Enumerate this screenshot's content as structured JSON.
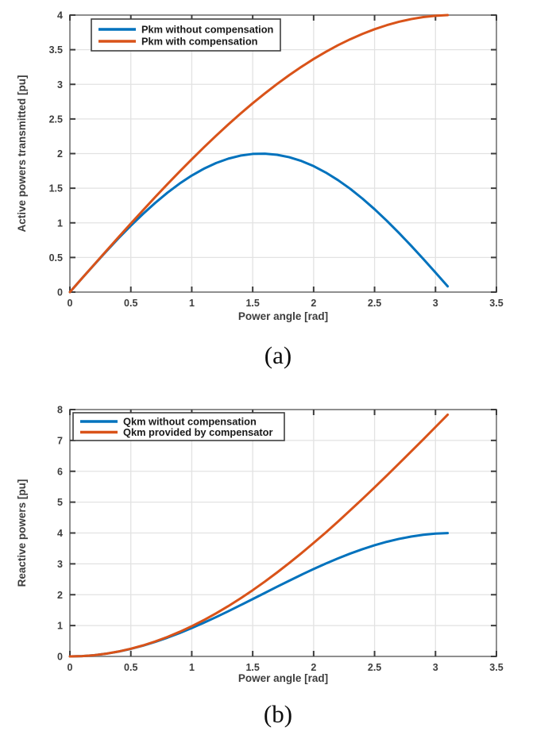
{
  "figure": {
    "background": "#ffffff"
  },
  "colors": {
    "blue": "#0072bd",
    "orange": "#d95319",
    "box": "#8f8f8f",
    "tick": "#3c3c3c",
    "grid": "#e2e2e2",
    "text": "#3d3d3d",
    "legend_border": "#3f3f3f",
    "legend_bg": "#ffffff"
  },
  "chart_data": [
    {
      "type": "line",
      "caption": "(a)",
      "xlabel": "Power angle [rad]",
      "ylabel": "Active powers transmitted [pu]",
      "xlim": [
        0,
        3.5
      ],
      "ylim": [
        0,
        4
      ],
      "xticks": [
        0,
        0.5,
        1,
        1.5,
        2,
        2.5,
        3,
        3.5
      ],
      "yticks": [
        0,
        0.5,
        1,
        1.5,
        2,
        2.5,
        3,
        3.5,
        4
      ],
      "grid": true,
      "legend_position": "top-left",
      "x": [
        0,
        0.1,
        0.2,
        0.3,
        0.4,
        0.5,
        0.6,
        0.7,
        0.8,
        0.9,
        1,
        1.1,
        1.2,
        1.3,
        1.4,
        1.5,
        1.6,
        1.7,
        1.8,
        1.9,
        2,
        2.1,
        2.2,
        2.3,
        2.4,
        2.5,
        2.6,
        2.7,
        2.8,
        2.9,
        3,
        3.1
      ],
      "series": [
        {
          "name": "Pkm without compensation",
          "color_key": "blue",
          "values": [
            0,
            0.2,
            0.397,
            0.591,
            0.779,
            0.959,
            1.129,
            1.288,
            1.435,
            1.567,
            1.683,
            1.782,
            1.864,
            1.927,
            1.971,
            1.995,
            1.999,
            1.983,
            1.948,
            1.893,
            1.819,
            1.726,
            1.617,
            1.492,
            1.351,
            1.197,
            1.031,
            0.854,
            0.67,
            0.478,
            0.282,
            0.083
          ]
        },
        {
          "name": "Pkm with compensation",
          "color_key": "orange",
          "values": [
            0,
            0.2,
            0.399,
            0.598,
            0.795,
            0.99,
            1.182,
            1.372,
            1.558,
            1.74,
            1.918,
            2.091,
            2.259,
            2.421,
            2.577,
            2.727,
            2.869,
            3.005,
            3.133,
            3.253,
            3.366,
            3.469,
            3.565,
            3.651,
            3.728,
            3.796,
            3.854,
            3.903,
            3.942,
            3.971,
            3.99,
            4
          ]
        }
      ]
    },
    {
      "type": "line",
      "caption": "(b)",
      "xlabel": "Power angle [rad]",
      "ylabel": "Reactive powers [pu]",
      "xlim": [
        0,
        3.5
      ],
      "ylim": [
        0,
        8
      ],
      "xticks": [
        0,
        0.5,
        1,
        1.5,
        2,
        2.5,
        3,
        3.5
      ],
      "yticks": [
        0,
        1,
        2,
        3,
        4,
        5,
        6,
        7,
        8
      ],
      "grid": true,
      "legend_position": "top-left",
      "x": [
        0,
        0.1,
        0.2,
        0.3,
        0.4,
        0.5,
        0.6,
        0.7,
        0.8,
        0.9,
        1,
        1.1,
        1.2,
        1.3,
        1.4,
        1.5,
        1.6,
        1.7,
        1.8,
        1.9,
        2,
        2.1,
        2.2,
        2.3,
        2.4,
        2.5,
        2.6,
        2.7,
        2.8,
        2.9,
        3,
        3.1
      ],
      "series": [
        {
          "name": "Qkm without compensation",
          "color_key": "blue",
          "values": [
            0,
            0.01,
            0.04,
            0.089,
            0.158,
            0.245,
            0.349,
            0.47,
            0.607,
            0.757,
            0.919,
            1.093,
            1.275,
            1.465,
            1.66,
            1.859,
            2.058,
            2.258,
            2.454,
            2.647,
            2.832,
            3.01,
            3.177,
            3.333,
            3.475,
            3.602,
            3.714,
            3.808,
            3.884,
            3.942,
            3.98,
            3.998
          ]
        },
        {
          "name": "Qkm provided by compensator",
          "color_key": "orange",
          "values": [
            0,
            0.01,
            0.04,
            0.09,
            0.16,
            0.249,
            0.357,
            0.485,
            0.631,
            0.796,
            0.979,
            1.18,
            1.397,
            1.631,
            1.881,
            2.146,
            2.426,
            2.72,
            3.027,
            3.346,
            3.678,
            4.017,
            4.371,
            4.735,
            5.101,
            5.477,
            5.86,
            6.248,
            6.64,
            7.035,
            7.434,
            7.834
          ]
        }
      ]
    }
  ]
}
